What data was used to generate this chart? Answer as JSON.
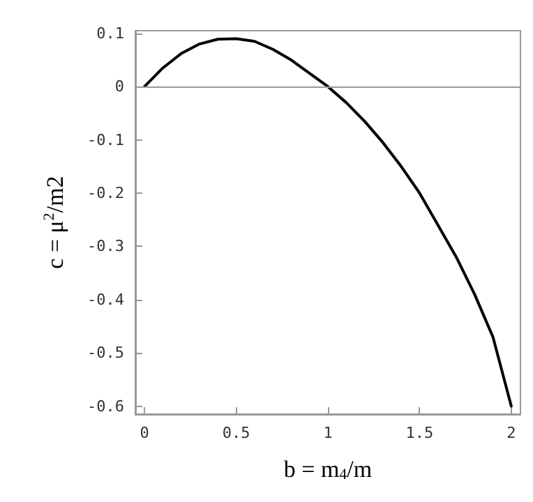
{
  "chart_data": {
    "type": "line",
    "xlabel": "b = m$_{4}$/m",
    "ylabel": "c = μ$^{2}$/m2",
    "x": [
      0,
      0.1,
      0.2,
      0.3,
      0.4,
      0.5,
      0.6,
      0.7,
      0.8,
      0.9,
      1.0,
      1.1,
      1.2,
      1.3,
      1.4,
      1.5,
      1.6,
      1.7,
      1.8,
      1.9,
      2.0
    ],
    "series": [
      {
        "color": "#000000",
        "values": [
          0,
          0.035,
          0.062,
          0.08,
          0.089,
          0.09,
          0.085,
          0.07,
          0.05,
          0.025,
          0,
          -0.03,
          -0.065,
          -0.105,
          -0.15,
          -0.2,
          -0.26,
          -0.32,
          -0.39,
          -0.47,
          -0.6
        ]
      }
    ],
    "xlim": [
      -0.05,
      2.05
    ],
    "ylim": [
      -0.615,
      0.105
    ],
    "xticks": [
      0,
      0.5,
      1,
      1.5,
      2
    ],
    "yticks": [
      -0.6,
      -0.5,
      -0.4,
      -0.3,
      -0.2,
      -0.1,
      0,
      0.1
    ],
    "ref_lines": [
      {
        "axis": "y",
        "value": 0,
        "color": "#999999"
      }
    ],
    "grid": false,
    "marker": "none",
    "line_style": "solid"
  }
}
